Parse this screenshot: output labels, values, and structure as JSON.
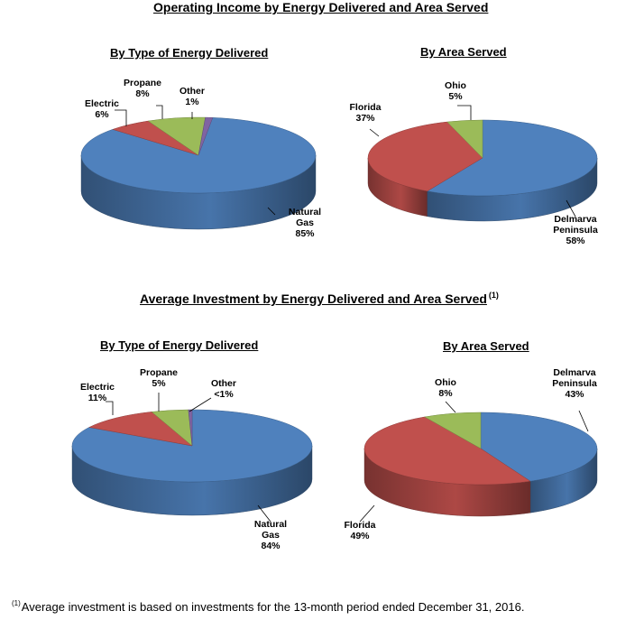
{
  "colors": {
    "natural_gas": "#4F81BD",
    "propane": "#C0504D",
    "electric": "#C0504D",
    "other": "#9BBB59",
    "delmarva": "#4F81BD",
    "florida": "#C0504D",
    "ohio": "#9BBB59"
  },
  "section1": {
    "title": "Operating Income by Energy Delivered and Area Served"
  },
  "section2": {
    "title": "Average Investment by Energy Delivered and Area Served",
    "title_note": "(1)"
  },
  "footnote": {
    "marker": "(1)",
    "text": "Average investment is based on investments for the 13-month period ended December 31, 2016."
  },
  "chart_data": [
    {
      "type": "pie",
      "title": "By Type of Energy Delivered",
      "slices": [
        {
          "name": "Natural Gas",
          "lines": [
            "Natural",
            "Gas"
          ],
          "value": 85,
          "label": "85%",
          "color": "#4F81BD"
        },
        {
          "name": "Electric",
          "lines": [
            "Electric"
          ],
          "value": 6,
          "label": "6%",
          "color": "#C0504D"
        },
        {
          "name": "Propane",
          "lines": [
            "Propane"
          ],
          "value": 8,
          "label": "8%",
          "color": "#9BBB59"
        },
        {
          "name": "Other",
          "lines": [
            "Other"
          ],
          "value": 1,
          "label": "1%",
          "color": "#8064A2"
        }
      ]
    },
    {
      "type": "pie",
      "title": "By Area Served",
      "slices": [
        {
          "name": "Delmarva Peninsula",
          "lines": [
            "Delmarva",
            "Peninsula"
          ],
          "value": 58,
          "label": "58%",
          "color": "#4F81BD"
        },
        {
          "name": "Florida",
          "lines": [
            "Florida"
          ],
          "value": 37,
          "label": "37%",
          "color": "#C0504D"
        },
        {
          "name": "Ohio",
          "lines": [
            "Ohio"
          ],
          "value": 5,
          "label": "5%",
          "color": "#9BBB59"
        }
      ]
    },
    {
      "type": "pie",
      "title": "By Type of Energy Delivered",
      "slices": [
        {
          "name": "Natural Gas",
          "lines": [
            "Natural",
            "Gas"
          ],
          "value": 84,
          "label": "84%",
          "color": "#4F81BD"
        },
        {
          "name": "Electric",
          "lines": [
            "Electric"
          ],
          "value": 11,
          "label": "11%",
          "color": "#C0504D"
        },
        {
          "name": "Propane",
          "lines": [
            "Propane"
          ],
          "value": 5,
          "label": "5%",
          "color": "#9BBB59"
        },
        {
          "name": "Other",
          "lines": [
            "Other"
          ],
          "value": 0.5,
          "label": "<1%",
          "color": "#8064A2"
        }
      ]
    },
    {
      "type": "pie",
      "title": "By Area Served",
      "slices": [
        {
          "name": "Delmarva Peninsula",
          "lines": [
            "Delmarva",
            "Peninsula"
          ],
          "value": 43,
          "label": "43%",
          "color": "#4F81BD"
        },
        {
          "name": "Florida",
          "lines": [
            "Florida"
          ],
          "value": 49,
          "label": "49%",
          "color": "#C0504D"
        },
        {
          "name": "Ohio",
          "lines": [
            "Ohio"
          ],
          "value": 8,
          "label": "8%",
          "color": "#9BBB59"
        }
      ]
    }
  ]
}
